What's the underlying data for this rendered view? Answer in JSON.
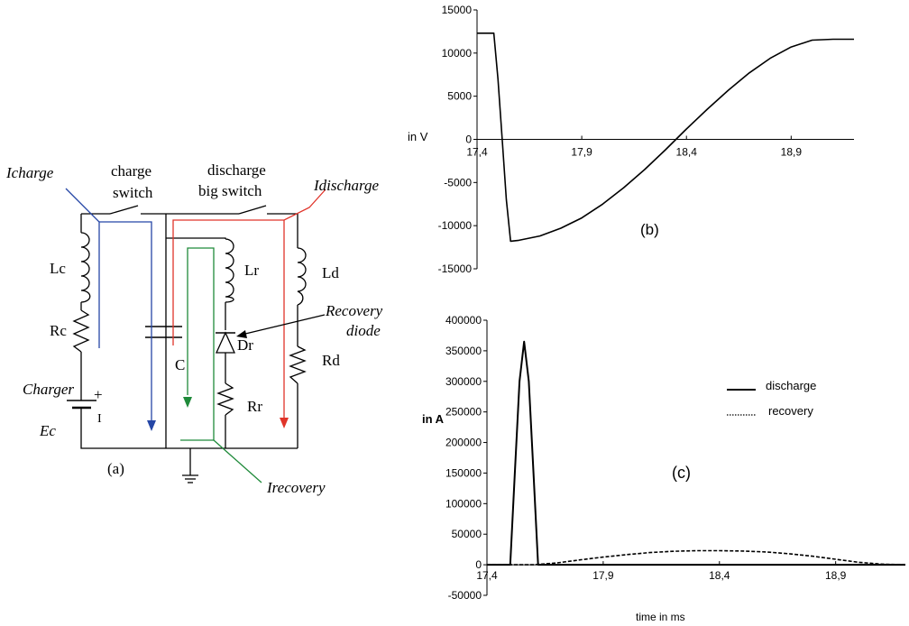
{
  "circuit": {
    "panel_label": "(a)",
    "charge_switch_label": [
      "charge",
      "switch"
    ],
    "discharge_switch_label": [
      "discharge",
      "big switch"
    ],
    "i_charge": "Icharge",
    "i_discharge": "Idischarge",
    "i_recovery": "Irecovery",
    "recovery_diode": [
      "Recovery",
      "diode"
    ],
    "components": {
      "lc": "Lc",
      "rc": "Rc",
      "charger": "Charger",
      "ec": "Ec",
      "c": "C",
      "lr": "Lr",
      "dr": "Dr",
      "rr": "Rr",
      "ld": "Ld",
      "rd": "Rd",
      "plus": "+",
      "minus": "I"
    },
    "colors": {
      "charge": "#2546a6",
      "discharge": "#e0342a",
      "recovery": "#1f8a3a"
    }
  },
  "chart_data": [
    {
      "type": "line",
      "panel": "(b)",
      "ylabel": "in V",
      "xlim": [
        17.4,
        19.2
      ],
      "ylim": [
        -15000,
        15000
      ],
      "yticks": [
        "15000",
        "10000",
        "5000",
        "0",
        "-5000",
        "-10000",
        "-15000"
      ],
      "xticks": [
        "17,4",
        "17,9",
        "18,4",
        "18,9"
      ],
      "series": [
        {
          "x": [
            17.4,
            17.48,
            17.5,
            17.52,
            17.54,
            17.56,
            17.6,
            17.7,
            17.8,
            17.9,
            18.0,
            18.1,
            18.2,
            18.3,
            18.4,
            18.5,
            18.6,
            18.7,
            18.8,
            18.9,
            19.0,
            19.1,
            19.2
          ],
          "y": [
            12300,
            12300,
            7000,
            0,
            -7000,
            -11800,
            -11700,
            -11200,
            -10300,
            -9100,
            -7500,
            -5600,
            -3500,
            -1200,
            1200,
            3500,
            5700,
            7700,
            9400,
            10700,
            11500,
            11600,
            11600
          ]
        }
      ]
    },
    {
      "type": "line",
      "panel": "(c)",
      "ylabel": "in A",
      "xlabel": "time in ms",
      "xlim": [
        17.4,
        19.2
      ],
      "ylim": [
        -50000,
        400000
      ],
      "yticks": [
        "400000",
        "350000",
        "300000",
        "250000",
        "200000",
        "150000",
        "100000",
        "50000",
        "0",
        "-50000"
      ],
      "xticks": [
        "17,4",
        "17,9",
        "18,4",
        "18,9"
      ],
      "series": [
        {
          "name": "discharge",
          "x": [
            17.4,
            17.5,
            17.52,
            17.54,
            17.56,
            17.58,
            17.6,
            17.62,
            19.2
          ],
          "y": [
            0,
            0,
            150000,
            300000,
            365000,
            300000,
            150000,
            0,
            0
          ]
        },
        {
          "name": "recovery",
          "x": [
            17.4,
            17.6,
            17.7,
            17.8,
            17.9,
            18.0,
            18.1,
            18.2,
            18.3,
            18.4,
            18.5,
            18.6,
            18.7,
            18.8,
            18.9,
            19.0,
            19.1,
            19.2
          ],
          "y": [
            0,
            0,
            3000,
            8000,
            12500,
            16500,
            20000,
            22000,
            23000,
            23000,
            22500,
            21000,
            18000,
            14000,
            9000,
            4000,
            1000,
            0
          ]
        }
      ]
    }
  ]
}
